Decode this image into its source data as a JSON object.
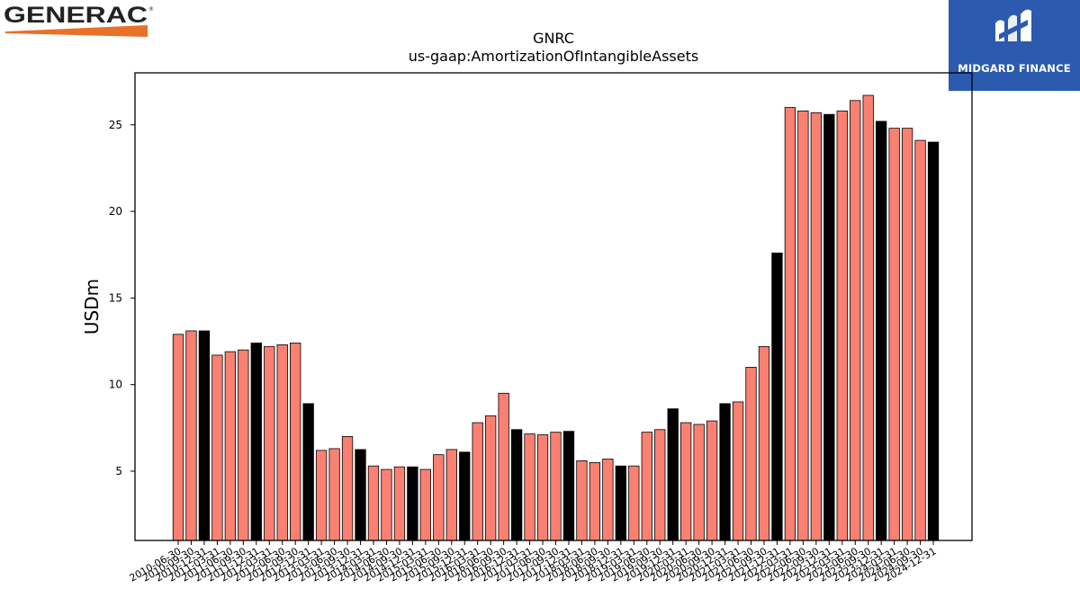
{
  "header": {
    "company_logo_text": "GENERAC",
    "publisher_logo_text": "MIDGARD FINANCE"
  },
  "colors": {
    "bar_regular": "#fa8072",
    "bar_year_end": "#000000",
    "generac_orange": "#e8712a",
    "midgard_blue": "#2b5aae"
  },
  "chart_data": {
    "type": "bar",
    "title": "GNRC",
    "subtitle": "us-gaap:AmortizationOfIntangibleAssets",
    "ylabel": "USDm",
    "xlabel": "",
    "ylim": [
      1,
      28
    ],
    "yticks": [
      5,
      10,
      15,
      20,
      25
    ],
    "grid": false,
    "categories": [
      "2010-06-30",
      "2010-09-30",
      "2010-12-31",
      "2011-03-31",
      "2011-06-30",
      "2011-09-30",
      "2011-12-31",
      "2012-03-31",
      "2012-06-30",
      "2012-09-30",
      "2012-12-31",
      "2013-03-31",
      "2013-06-30",
      "2013-09-30",
      "2013-12-31",
      "2014-03-31",
      "2014-06-30",
      "2014-09-30",
      "2014-12-31",
      "2015-03-31",
      "2015-06-30",
      "2015-09-30",
      "2015-12-31",
      "2016-03-31",
      "2016-06-30",
      "2016-09-30",
      "2016-12-31",
      "2017-03-31",
      "2017-06-30",
      "2017-09-30",
      "2017-12-31",
      "2018-03-31",
      "2018-06-30",
      "2018-09-30",
      "2018-12-31",
      "2019-03-31",
      "2019-06-30",
      "2019-09-30",
      "2019-12-31",
      "2020-03-31",
      "2020-06-30",
      "2020-09-30",
      "2020-12-31",
      "2021-03-31",
      "2021-06-30",
      "2021-09-30",
      "2021-12-31",
      "2022-03-31",
      "2022-06-30",
      "2022-09-30",
      "2022-12-31",
      "2023-03-31",
      "2023-06-30",
      "2023-09-30",
      "2023-12-31",
      "2024-03-31",
      "2024-06-30",
      "2024-09-30",
      "2024-12-31"
    ],
    "values": [
      12.9,
      13.1,
      13.1,
      11.7,
      11.9,
      12.0,
      12.4,
      12.2,
      12.3,
      12.4,
      8.9,
      6.2,
      6.3,
      7.0,
      6.25,
      5.3,
      5.1,
      5.25,
      5.25,
      5.1,
      5.95,
      6.25,
      6.1,
      7.8,
      8.2,
      9.5,
      7.4,
      7.15,
      7.1,
      7.25,
      7.3,
      5.6,
      5.5,
      5.7,
      5.3,
      5.3,
      7.25,
      7.4,
      8.6,
      7.8,
      7.7,
      7.9,
      8.9,
      9.0,
      11.0,
      12.2,
      17.6,
      26.0,
      25.8,
      25.7,
      25.6,
      25.8,
      26.4,
      26.7,
      25.2,
      24.8,
      24.8,
      24.1,
      24.0
    ],
    "year_end_highlight": true
  }
}
